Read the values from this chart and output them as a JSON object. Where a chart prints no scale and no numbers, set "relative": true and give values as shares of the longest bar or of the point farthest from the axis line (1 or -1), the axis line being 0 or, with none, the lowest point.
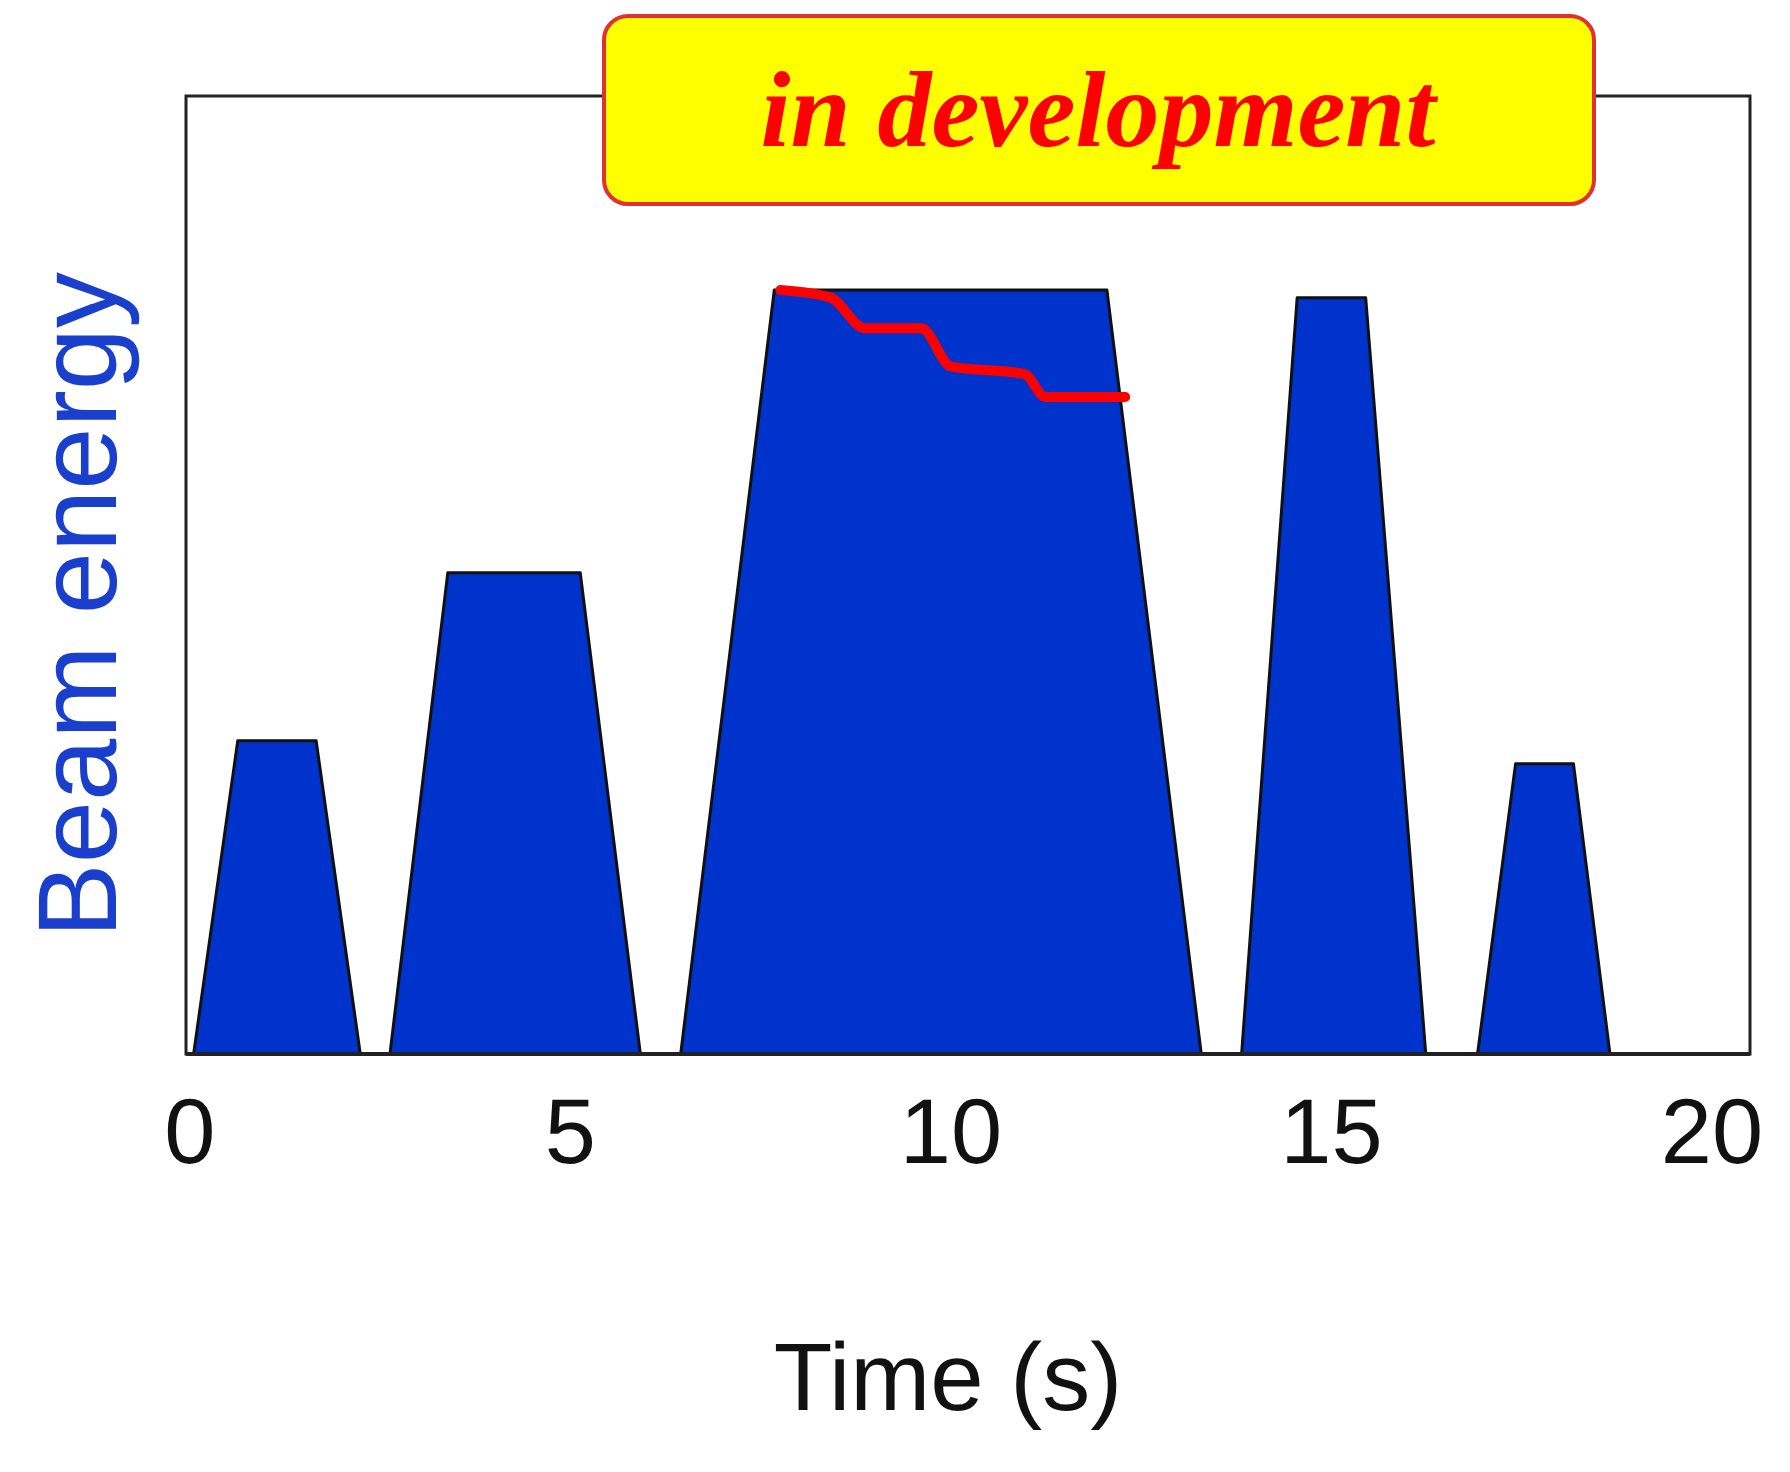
{
  "chart_data": {
    "type": "area",
    "relative": true,
    "xlabel": "Time (s)",
    "ylabel": "Beam energy",
    "annotations": [
      "in development"
    ],
    "xlim": [
      -0.05,
      20.5
    ],
    "xticks": [
      0,
      5,
      10,
      15,
      20
    ],
    "series": [
      {
        "color": "#0033cc",
        "x": [
          0.05,
          0.63,
          1.66,
          2.24,
          2.63,
          3.39,
          5.13,
          5.92,
          6.45,
          7.68,
          12.05,
          13.29,
          13.82,
          14.55,
          15.45,
          16.24,
          16.92,
          17.42,
          18.18,
          18.66
        ],
        "values": [
          0,
          0.41,
          0.41,
          0,
          0,
          0.63,
          0.63,
          0,
          0,
          1,
          1,
          0,
          0,
          0.99,
          0.99,
          0,
          0,
          0.38,
          0.38,
          0
        ]
      },
      {
        "type": "line",
        "color": "#ff0000",
        "x": [
          7.76,
          8.42,
          8.87,
          9.61,
          10.0,
          10.97,
          11.24,
          12.29
        ],
        "values": [
          1.0,
          0.99,
          0.95,
          0.95,
          0.9,
          0.89,
          0.86,
          0.86
        ]
      }
    ]
  }
}
